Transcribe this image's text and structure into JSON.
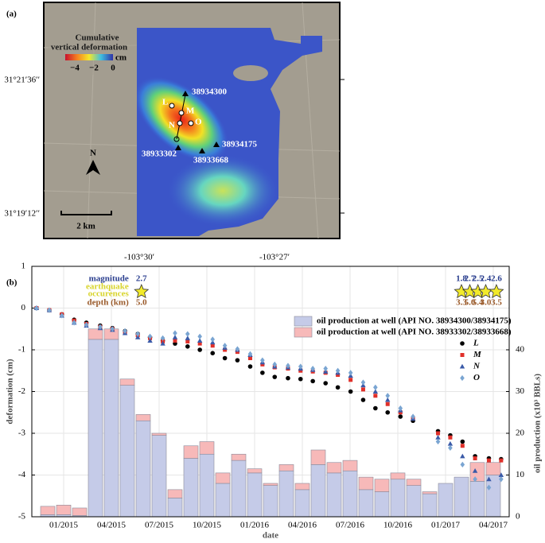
{
  "map": {
    "panel_label": "(a)",
    "colorbar_title": [
      "Cumulative",
      "vertical deformation"
    ],
    "colorbar_unit": "cm",
    "colorbar_ticks": [
      {
        "value": -4,
        "label": "−4"
      },
      {
        "value": -2,
        "label": "−2"
      },
      0
    ],
    "lat_labels": [
      "31°21′36′′",
      "31°19′12′′"
    ],
    "lon_labels": [
      "-103°30′",
      "-103°27′"
    ],
    "wells": [
      "38934300",
      "38934175",
      "38933302",
      "38933668"
    ],
    "points": [
      "L",
      "M",
      "N",
      "O"
    ],
    "north": "N",
    "scale": "2 km"
  },
  "chart_data": {
    "type": "combo",
    "panel_label": "(b)",
    "xlabel": "date",
    "ylabel": "deformation (cm)",
    "y2label": "oil production (x10³ BBLs)",
    "xlim": [
      "2014-11",
      "2017-05"
    ],
    "xticks": [
      {
        "value": "2015-01",
        "label": "01/2015"
      },
      {
        "value": "2015-04",
        "label": "04/2015"
      },
      {
        "value": "2015-07",
        "label": "07/2015"
      },
      {
        "value": "2015-10",
        "label": "10/2015"
      },
      {
        "value": "2016-01",
        "label": "01/2016"
      },
      {
        "value": "2016-04",
        "label": "04/2016"
      },
      {
        "value": "2016-07",
        "label": "07/2016"
      },
      {
        "value": "2016-10",
        "label": "10/2016"
      },
      {
        "value": "2017-01",
        "label": "01/2017"
      },
      {
        "value": "2017-04",
        "label": "04/2017"
      }
    ],
    "ylim": [
      -5,
      1
    ],
    "yticks": [
      -5,
      -4,
      -3,
      -2,
      -1,
      0,
      1
    ],
    "y2lim": [
      0,
      60
    ],
    "y2ticks": [
      0,
      10,
      20,
      30,
      40
    ],
    "grid": true,
    "x": [
      "2014-11-10",
      "2014-12-04",
      "2014-12-28",
      "2015-01-21",
      "2015-02-14",
      "2015-03-10",
      "2015-04-03",
      "2015-04-27",
      "2015-05-21",
      "2015-06-14",
      "2015-07-08",
      "2015-08-01",
      "2015-08-25",
      "2015-09-18",
      "2015-10-12",
      "2015-11-05",
      "2015-11-29",
      "2015-12-23",
      "2016-01-16",
      "2016-02-09",
      "2016-03-04",
      "2016-03-28",
      "2016-04-21",
      "2016-05-15",
      "2016-06-08",
      "2016-07-02",
      "2016-07-26",
      "2016-08-19",
      "2016-09-12",
      "2016-10-06",
      "2016-10-30",
      "2016-12-17",
      "2017-01-10",
      "2017-02-03",
      "2017-02-27",
      "2017-03-23",
      "2017-04-16"
    ],
    "series": [
      {
        "name": "oil production at well (API NO. 38934300/38934175)",
        "type": "bar",
        "axis": "y2",
        "color": "#c5cbe8",
        "x": [
          "2014-12",
          "2015-01",
          "2015-02",
          "2015-03",
          "2015-04",
          "2015-05",
          "2015-06",
          "2015-07",
          "2015-08",
          "2015-09",
          "2015-10",
          "2015-11",
          "2015-12",
          "2016-01",
          "2016-02",
          "2016-03",
          "2016-04",
          "2016-05",
          "2016-06",
          "2016-07",
          "2016-08",
          "2016-09",
          "2016-10",
          "2016-11",
          "2016-12",
          "2017-01",
          "2017-02",
          "2017-03",
          "2017-04"
        ],
        "values": [
          0.5,
          0.5,
          0.3,
          42.5,
          42.5,
          31.5,
          23,
          19.5,
          4.5,
          14,
          15,
          8,
          13.5,
          10.5,
          7.5,
          11,
          6.5,
          12.5,
          10.5,
          11,
          6.5,
          6,
          9,
          7.5,
          5.5,
          8,
          9.5,
          8.5,
          10
        ]
      },
      {
        "name": "oil production at well (API NO. 38933302/38933668)",
        "type": "bar",
        "axis": "y2",
        "color": "#f7b9b9",
        "x": [
          "2014-12",
          "2015-01",
          "2015-02",
          "2015-03",
          "2015-04",
          "2015-05",
          "2015-06",
          "2015-07",
          "2015-08",
          "2015-09",
          "2015-10",
          "2015-11",
          "2015-12",
          "2016-01",
          "2016-02",
          "2016-03",
          "2016-04",
          "2016-05",
          "2016-06",
          "2016-07",
          "2016-08",
          "2016-09",
          "2016-10",
          "2016-11",
          "2016-12",
          "2017-01",
          "2017-02",
          "2017-03",
          "2017-04"
        ],
        "values": [
          2,
          2.3,
          1.8,
          2.5,
          2.5,
          1.5,
          1.5,
          0.5,
          2,
          3,
          3,
          2.5,
          1.5,
          1,
          0.5,
          1.5,
          1.5,
          3.5,
          2.5,
          2.5,
          3,
          3,
          1.5,
          1.5,
          0.5,
          0,
          0,
          4.5,
          3
        ]
      },
      {
        "name": "L",
        "type": "scatter",
        "marker": "circle",
        "color": "#000000",
        "values": [
          0,
          -0.05,
          -0.15,
          -0.28,
          -0.35,
          -0.42,
          -0.48,
          -0.55,
          -0.62,
          -0.7,
          -0.78,
          -0.85,
          -0.92,
          -1.0,
          -1.08,
          -1.2,
          -1.25,
          -1.4,
          -1.55,
          -1.65,
          -1.68,
          -1.7,
          -1.75,
          -1.8,
          -1.9,
          -2.0,
          -2.2,
          -2.4,
          -2.5,
          -2.6,
          -2.7,
          -2.95,
          -3.05,
          -3.2,
          -3.55,
          -3.6,
          -3.62
        ]
      },
      {
        "name": "M",
        "type": "scatter",
        "marker": "square",
        "color": "#e0302a",
        "values": [
          0,
          -0.05,
          -0.15,
          -0.3,
          -0.38,
          -0.45,
          -0.5,
          -0.58,
          -0.65,
          -0.72,
          -0.8,
          -0.78,
          -0.8,
          -0.85,
          -0.9,
          -1.0,
          -1.05,
          -1.2,
          -1.35,
          -1.42,
          -1.45,
          -1.5,
          -1.52,
          -1.55,
          -1.6,
          -1.72,
          -1.95,
          -2.1,
          -2.3,
          -2.5,
          -2.65,
          -3.0,
          -3.1,
          -3.3,
          -3.6,
          -3.65,
          -3.65
        ]
      },
      {
        "name": "N",
        "type": "scatter",
        "marker": "triangle",
        "color": "#3a5aa8",
        "values": [
          0,
          -0.05,
          -0.18,
          -0.35,
          -0.42,
          -0.48,
          -0.52,
          -0.6,
          -0.7,
          -0.78,
          -0.85,
          -0.7,
          -0.72,
          -0.78,
          -0.82,
          -0.95,
          -1.0,
          -1.12,
          -1.3,
          -1.4,
          -1.42,
          -1.45,
          -1.48,
          -1.52,
          -1.55,
          -1.62,
          -1.85,
          -2.0,
          -2.2,
          -2.45,
          -2.65,
          -3.1,
          -3.25,
          -3.55,
          -3.9,
          -4.1,
          -4.0
        ]
      },
      {
        "name": "O",
        "type": "scatter",
        "marker": "diamond",
        "color": "#7aa5d2",
        "values": [
          0,
          -0.05,
          -0.18,
          -0.35,
          -0.4,
          -0.45,
          -0.5,
          -0.55,
          -0.62,
          -0.68,
          -0.72,
          -0.6,
          -0.62,
          -0.68,
          -0.75,
          -0.9,
          -0.98,
          -1.1,
          -1.25,
          -1.35,
          -1.38,
          -1.4,
          -1.45,
          -1.45,
          -1.5,
          -1.55,
          -1.78,
          -1.9,
          -2.1,
          -2.4,
          -2.6,
          -3.2,
          -3.35,
          -3.75,
          -4.1,
          -4.3,
          -4.1
        ]
      }
    ],
    "earthquakes": {
      "legend": [
        "magnitude",
        "earthquake",
        "occurences",
        "depth (km)"
      ],
      "x": [
        "2015-05-28",
        "2017-02-01",
        "2017-02-17",
        "2017-03-02",
        "2017-03-17",
        "2017-04-07"
      ],
      "magnitudes": [
        2.7,
        1.8,
        2.7,
        2.5,
        2.4,
        2.6
      ],
      "depths": [
        5,
        3.3,
        5,
        5.4,
        3,
        3.5
      ],
      "depth_labels": [
        "5.0",
        "3.3",
        "5.0",
        "5.4",
        "3.0",
        "3.5"
      ]
    }
  }
}
